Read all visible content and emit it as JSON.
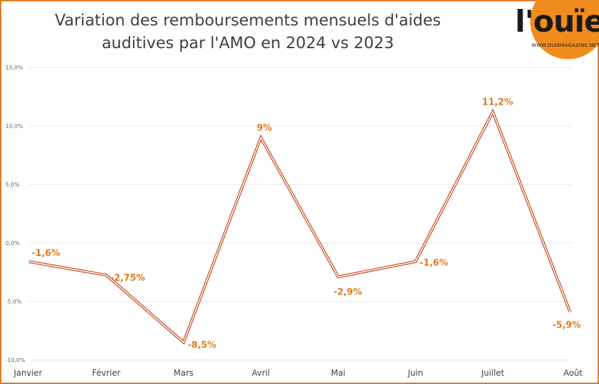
{
  "title": "Variation des remboursements mensuels d'aides auditives par l'AMO en 2024 vs 2023",
  "logo": {
    "text": "l'ouïe",
    "subtext": "WWW.OUIEMAGAZINE.NET"
  },
  "colors": {
    "border": "#e07b22",
    "line": "#c0441a",
    "label": "#e07b22",
    "logo_circle": "#f08c1e"
  },
  "chart_data": {
    "type": "line",
    "title": "Variation des remboursements mensuels d'aides auditives par l'AMO en 2024 vs 2023",
    "categories": [
      "Janvier",
      "Février",
      "Mars",
      "Avril",
      "Mai",
      "Juin",
      "Juillet",
      "Août"
    ],
    "values": [
      -1.6,
      -2.75,
      -8.5,
      9,
      -2.9,
      -1.6,
      11.2,
      -5.9
    ],
    "data_labels": [
      "-1,6%",
      "-2,75%",
      "-8,5%",
      "9%",
      "-2,9%",
      "-1,6%",
      "11,2%",
      "-5,9%"
    ],
    "ylim": [
      -10,
      15
    ],
    "yticks": [
      15,
      10,
      5,
      0,
      -5,
      -10
    ],
    "ytick_labels": [
      "15,0%",
      "10,0%",
      "5,0%",
      "0,0%",
      "-5,0%",
      "-10,0%"
    ],
    "grid": true,
    "legend": "none"
  }
}
